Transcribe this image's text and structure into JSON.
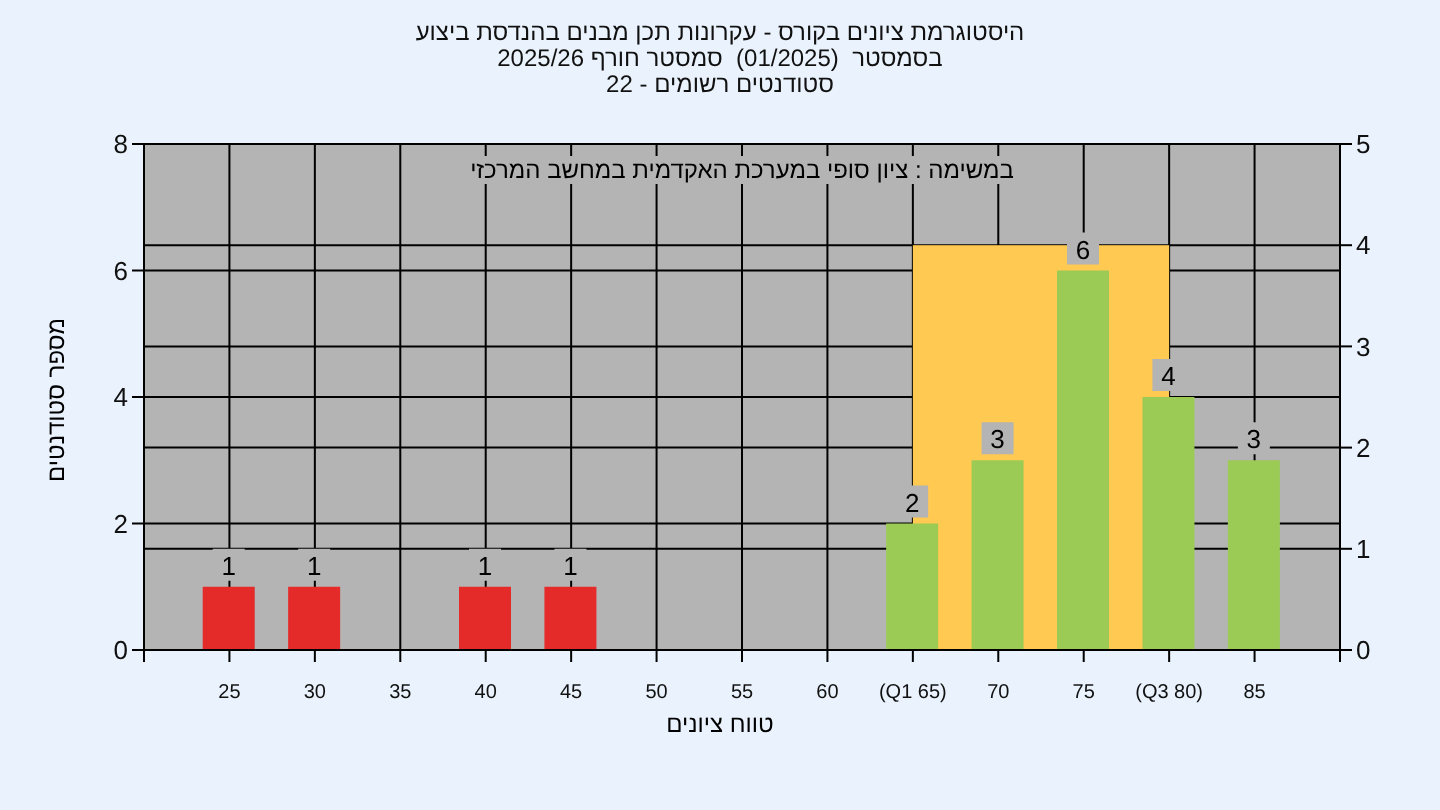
{
  "chart_data": {
    "type": "bar",
    "title": "היסטוגרמת ציונים בקורס - עקרונות תכן מבנים בהנדסת ביצוע",
    "subtitle": "בסמסטר  (01/2025)  סמסטר חורף 2025/26\nסטודנטים רשומים - 22",
    "xlabel": "טווח ציונים",
    "ylabel": "מספר סטודנטים",
    "annotations": [
      "במשימה : ציון סופי במערכת האקדמית במחשב המרכזי"
    ],
    "x": [
      25,
      30,
      40,
      45,
      65,
      70,
      75,
      80,
      85
    ],
    "values": [
      1,
      1,
      1,
      1,
      2,
      3,
      6,
      4,
      3
    ],
    "colors": [
      "#e52a2a",
      "#e52a2a",
      "#e52a2a",
      "#e52a2a",
      "#9ccb55",
      "#9ccb55",
      "#9ccb55",
      "#9ccb55",
      "#9ccb55"
    ],
    "data_labels": true,
    "xlim": [
      20,
      90
    ],
    "xticks": [
      {
        "value": 20,
        "label": null
      },
      25,
      30,
      35,
      40,
      45,
      50,
      55,
      60,
      {
        "value": 65,
        "label": "(Q1 65)"
      },
      70,
      75,
      {
        "value": 80,
        "label": "(Q3 80)"
      },
      85,
      {
        "value": 90,
        "label": null
      }
    ],
    "ylim": [
      0,
      8
    ],
    "yticks": [
      0,
      2,
      4,
      6,
      8
    ],
    "y2lim": [
      0,
      5
    ],
    "y2ticks": [
      0,
      1,
      2,
      3,
      4,
      5
    ],
    "bands": [
      {
        "axis": "x",
        "from": 65,
        "to": 80,
        "color": "#ffc952"
      }
    ],
    "grid": true,
    "legend": false
  }
}
